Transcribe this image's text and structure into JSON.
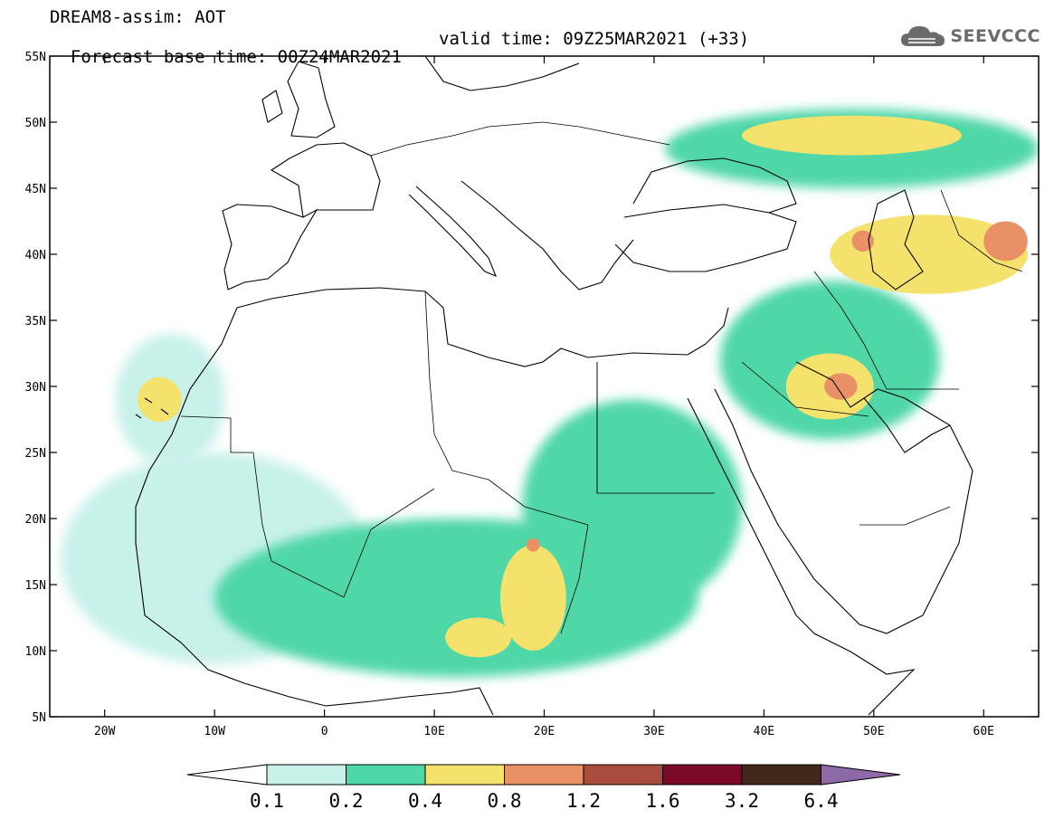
{
  "header": {
    "model_line": "DREAM8-assim: AOT",
    "forecast_line": "Forecast base time: 00Z24MAR2021",
    "valid_line": "valid time: 09Z25MAR2021 (+33)"
  },
  "logo": {
    "text": "SEEVCCC",
    "icon": "cloud-icon"
  },
  "map": {
    "lon_range": [
      -25,
      65
    ],
    "lat_range": [
      5,
      55
    ],
    "lon_ticks": [
      "20W",
      "10W",
      "0",
      "10E",
      "20E",
      "30E",
      "40E",
      "50E",
      "60E"
    ],
    "lat_ticks": [
      "55N",
      "50N",
      "45N",
      "40N",
      "35N",
      "30N",
      "25N",
      "20N",
      "15N",
      "10N",
      "5N"
    ]
  },
  "colorbar": {
    "colors": [
      "#ffffff",
      "#c8f1ea",
      "#4fd7a8",
      "#f4e26c",
      "#e99067",
      "#aa4c3d",
      "#7a0a27",
      "#41281a",
      "#8e69a8"
    ],
    "labels": [
      "0.1",
      "0.2",
      "0.4",
      "0.8",
      "1.2",
      "1.6",
      "3.2",
      "6.4"
    ]
  },
  "aot_regions": [
    {
      "name": "sahel-band",
      "level": 2,
      "lon_center": 12,
      "lat_center": 14,
      "lon_half": 22,
      "lat_half": 6
    },
    {
      "name": "west-africa-light",
      "level": 1,
      "lon_center": -10,
      "lat_center": 17,
      "lon_half": 14,
      "lat_half": 8
    },
    {
      "name": "eastern-sahara",
      "level": 2,
      "lon_center": 28,
      "lat_center": 21,
      "lon_half": 10,
      "lat_half": 8
    },
    {
      "name": "chad-plume",
      "level": 3,
      "lon_center": 19,
      "lat_center": 14,
      "lon_half": 3,
      "lat_half": 4
    },
    {
      "name": "chad-peak",
      "level": 4,
      "lon_center": 19,
      "lat_center": 18,
      "lon_half": 0.6,
      "lat_half": 0.5
    },
    {
      "name": "nigeria-plume",
      "level": 3,
      "lon_center": 14,
      "lat_center": 11,
      "lon_half": 3,
      "lat_half": 1.5
    },
    {
      "name": "canary-plume",
      "level": 3,
      "lon_center": -15,
      "lat_center": 29,
      "lon_half": 2,
      "lat_half": 1.7
    },
    {
      "name": "canary-light",
      "level": 1,
      "lon_center": -14,
      "lat_center": 29,
      "lon_half": 5,
      "lat_half": 5
    },
    {
      "name": "iraq-dust",
      "level": 3,
      "lon_center": 46,
      "lat_center": 30,
      "lon_half": 4,
      "lat_half": 2.5
    },
    {
      "name": "iraq-peak",
      "level": 4,
      "lon_center": 47,
      "lat_center": 30,
      "lon_half": 1.5,
      "lat_half": 1
    },
    {
      "name": "middle-east-band",
      "level": 2,
      "lon_center": 46,
      "lat_center": 32,
      "lon_half": 10,
      "lat_half": 6
    },
    {
      "name": "caspian-dust",
      "level": 3,
      "lon_center": 55,
      "lat_center": 40,
      "lon_half": 9,
      "lat_half": 3
    },
    {
      "name": "karakum-peak",
      "level": 4,
      "lon_center": 62,
      "lat_center": 41,
      "lon_half": 2,
      "lat_half": 1.5
    },
    {
      "name": "caucasus-peak",
      "level": 4,
      "lon_center": 49,
      "lat_center": 41,
      "lon_half": 1,
      "lat_half": 0.8
    },
    {
      "name": "north-band",
      "level": 3,
      "lon_center": 48,
      "lat_center": 49,
      "lon_half": 10,
      "lat_half": 1.5
    },
    {
      "name": "north-band-outer",
      "level": 2,
      "lon_center": 48,
      "lat_center": 48,
      "lon_half": 17,
      "lat_half": 3
    }
  ]
}
